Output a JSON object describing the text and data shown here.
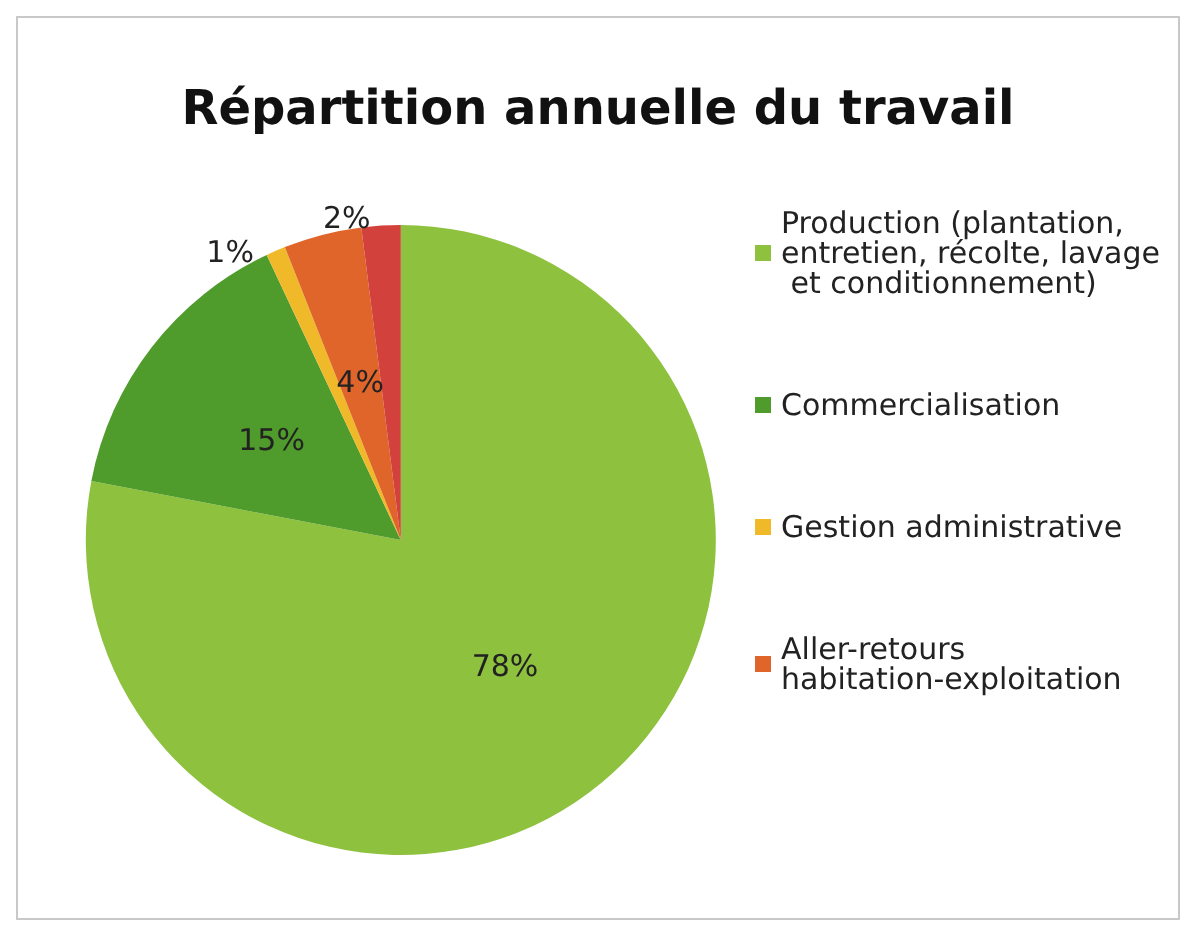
{
  "chart_data": {
    "type": "pie",
    "title": "Répartition annuelle du travail",
    "categories": [
      "Production (plantation, entretien, récolte, lavage et conditionnement)",
      "Commercialisation",
      "Gestion administrative",
      "Aller-retours habitation-exploitation",
      null
    ],
    "values": [
      78,
      15,
      1,
      4,
      2
    ],
    "colors": [
      "#8dc13e",
      "#4f9b2b",
      "#f0b92a",
      "#e0652b",
      "#d2413b"
    ],
    "value_labels": [
      "78%",
      "15%",
      "1%",
      "4%",
      "2%"
    ],
    "legend": "right"
  }
}
